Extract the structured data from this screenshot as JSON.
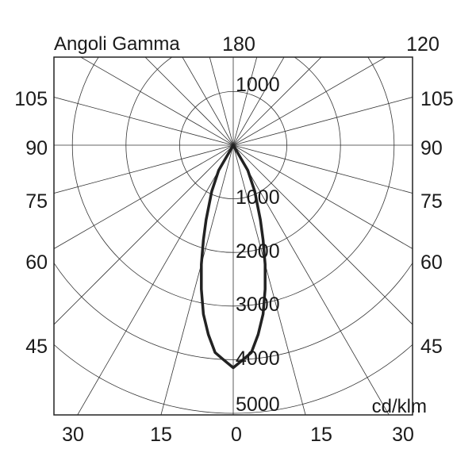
{
  "chart_data": {
    "type": "polar-line",
    "title": "Angoli Gamma",
    "unit_label": "cd/klm",
    "top_center_label": "180",
    "top_right_label": "120",
    "upper_ring_labels": [
      "1000"
    ],
    "lower_ring_labels": [
      "1000",
      "2000",
      "3000",
      "4000",
      "5000"
    ],
    "ring_values": [
      1000,
      2000,
      3000,
      4000,
      5000
    ],
    "radial_range": [
      0,
      5000
    ],
    "angular_step_deg": 15,
    "side_labels": [
      "105",
      "90",
      "75",
      "60",
      "45"
    ],
    "bottom_labels": [
      "30",
      "15",
      "0",
      "15",
      "30"
    ],
    "series": [
      {
        "color": "#222222",
        "gamma_deg": [
          0,
          2.5,
          5,
          7.5,
          10,
          12.5,
          15,
          17.5,
          20,
          25,
          30,
          40
        ],
        "intensity": [
          4150,
          4010,
          3880,
          3560,
          3200,
          2750,
          2300,
          1850,
          1480,
          950,
          540,
          0
        ]
      }
    ],
    "grid": true
  }
}
